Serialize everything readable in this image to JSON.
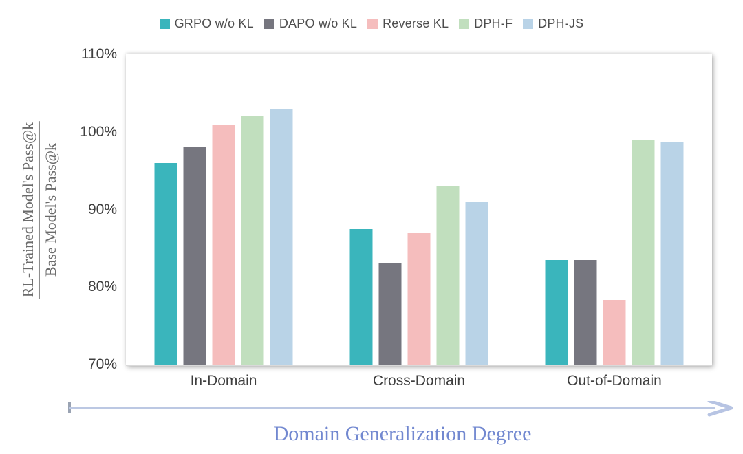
{
  "chart_data": {
    "type": "bar",
    "categories": [
      "In-Domain",
      "Cross-Domain",
      "Out-of-Domain"
    ],
    "series": [
      {
        "name": "GRPO w/o KL",
        "color": "#3ab5bc",
        "values": [
          96,
          87.5,
          83.5
        ]
      },
      {
        "name": "DAPO w/o KL",
        "color": "#76767f",
        "values": [
          98,
          83,
          83.5
        ]
      },
      {
        "name": "Reverse KL",
        "color": "#f5bdbd",
        "values": [
          101,
          87,
          78.3
        ]
      },
      {
        "name": "DPH-F",
        "color": "#c1dfbe",
        "values": [
          102,
          93,
          99
        ]
      },
      {
        "name": "DPH-JS",
        "color": "#b9d3e7",
        "values": [
          103,
          91,
          98.7
        ]
      }
    ],
    "ylim": [
      70,
      110
    ],
    "yticks": [
      110,
      100,
      90,
      80,
      70
    ],
    "ytick_labels": [
      "110%",
      "100%",
      "90%",
      "80%",
      "70%"
    ],
    "ylabel": {
      "numerator": "RL-Trained Model's Pass@k",
      "denominator": "Base Model's Pass@k"
    },
    "xlabel": "Domain Generalization Degree",
    "legend_position": "top",
    "grid": false
  },
  "colors": {
    "axis_line": "#d9d9d9",
    "tick_text": "#3f3f3f",
    "legend_text": "#4d4d4d",
    "xlabel_text": "#7288d0",
    "arrow_line": "#bcc8e3",
    "arrow_head": "#b7c4e3",
    "arrow_start_tick": "#9aa3b3",
    "ylabel_text": "#6b6b6b"
  }
}
